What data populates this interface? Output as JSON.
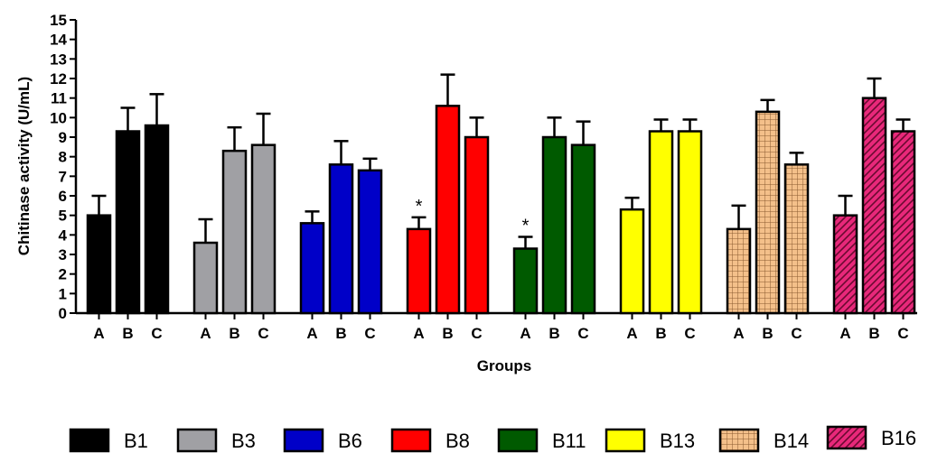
{
  "chart_data": {
    "type": "bar",
    "title": "",
    "xlabel": "Groups",
    "ylabel": "Chitinase activity (U/mL)",
    "ylim": [
      0,
      15
    ],
    "yticks": [
      0,
      1,
      2,
      3,
      4,
      5,
      6,
      7,
      8,
      9,
      10,
      11,
      12,
      13,
      14,
      15
    ],
    "grid": false,
    "legend_position": "bottom",
    "categories": [
      "A",
      "B",
      "C"
    ],
    "series": [
      {
        "name": "B1",
        "color": "#000000",
        "pattern": "solid",
        "values": [
          5.0,
          9.3,
          9.6
        ],
        "errors": [
          1.0,
          1.2,
          1.6
        ],
        "annotations": [
          "",
          "",
          ""
        ]
      },
      {
        "name": "B3",
        "color": "#a0a0a4",
        "pattern": "solid",
        "values": [
          3.6,
          8.3,
          8.6
        ],
        "errors": [
          1.2,
          1.2,
          1.6
        ],
        "annotations": [
          "",
          "",
          ""
        ]
      },
      {
        "name": "B6",
        "color": "#0000c8",
        "pattern": "solid",
        "values": [
          4.6,
          7.6,
          7.3
        ],
        "errors": [
          0.6,
          1.2,
          0.6
        ],
        "annotations": [
          "",
          "",
          ""
        ]
      },
      {
        "name": "B8",
        "color": "#ff0000",
        "pattern": "solid",
        "values": [
          4.3,
          10.6,
          9.0
        ],
        "errors": [
          0.6,
          1.6,
          1.0
        ],
        "annotations": [
          "*",
          "",
          ""
        ]
      },
      {
        "name": "B11",
        "color": "#005a00",
        "pattern": "solid",
        "values": [
          3.3,
          9.0,
          8.6
        ],
        "errors": [
          0.6,
          1.0,
          1.2
        ],
        "annotations": [
          "*",
          "",
          ""
        ]
      },
      {
        "name": "B13",
        "color": "#ffff00",
        "pattern": "solid",
        "values": [
          5.3,
          9.3,
          9.3
        ],
        "errors": [
          0.6,
          0.6,
          0.6
        ],
        "annotations": [
          "",
          "",
          ""
        ]
      },
      {
        "name": "B14",
        "color": "#f4c08a",
        "pattern": "grid",
        "values": [
          4.3,
          10.3,
          7.6
        ],
        "errors": [
          1.2,
          0.6,
          0.6
        ],
        "annotations": [
          "",
          "",
          ""
        ]
      },
      {
        "name": "B16",
        "color": "#e8287a",
        "pattern": "hatch",
        "values": [
          5.0,
          11.0,
          9.3
        ],
        "errors": [
          1.0,
          1.0,
          0.6
        ],
        "annotations": [
          "",
          "",
          ""
        ]
      }
    ]
  }
}
